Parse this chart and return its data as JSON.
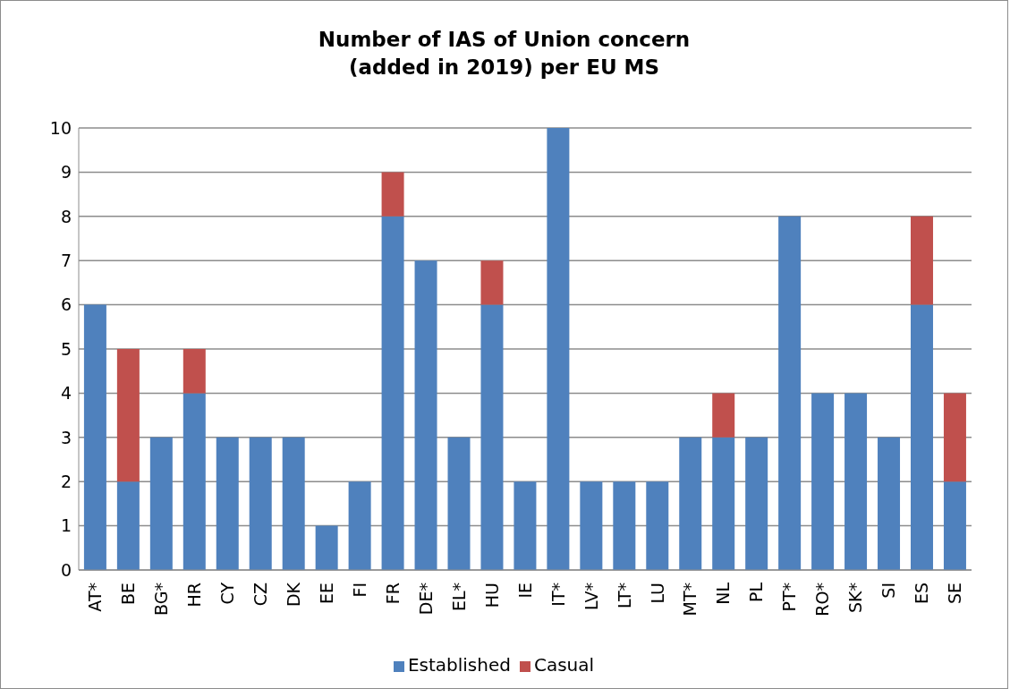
{
  "chart_data": {
    "type": "bar",
    "title": "Number of IAS of Union concern (added in 2019) per EU MS",
    "categories": [
      "AT*",
      "BE",
      "BG*",
      "HR",
      "CY",
      "CZ",
      "DK",
      "EE",
      "FI",
      "FR",
      "DE*",
      "EL*",
      "HU",
      "IE",
      "IT*",
      "LV*",
      "LT*",
      "LU",
      "MT*",
      "NL",
      "PL",
      "PT*",
      "RO*",
      "SK*",
      "SI",
      "ES",
      "SE"
    ],
    "series": [
      {
        "name": "Established",
        "color": "#4f81bd",
        "values": [
          6,
          2,
          3,
          4,
          3,
          3,
          3,
          1,
          2,
          8,
          7,
          3,
          6,
          2,
          10,
          2,
          2,
          2,
          3,
          3,
          3,
          8,
          4,
          4,
          3,
          6,
          2
        ]
      },
      {
        "name": "Casual",
        "color": "#c0504d",
        "values": [
          0,
          3,
          0,
          1,
          0,
          0,
          0,
          0,
          0,
          1,
          0,
          0,
          1,
          0,
          0,
          0,
          0,
          0,
          0,
          1,
          0,
          0,
          0,
          0,
          0,
          2,
          2
        ]
      }
    ],
    "stacked": true,
    "ylim": [
      0,
      10
    ],
    "yticks": [
      0,
      1,
      2,
      3,
      4,
      5,
      6,
      7,
      8,
      9,
      10
    ],
    "grid": "y",
    "legend": "bottom"
  }
}
